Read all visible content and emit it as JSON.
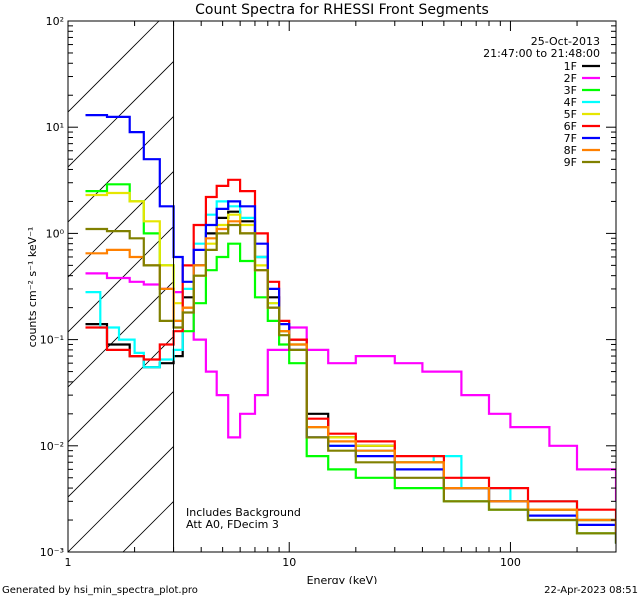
{
  "chart_data": {
    "type": "line",
    "title": "Count Spectra for RHESSI Front Segments",
    "xlabel": "Energy (keV)",
    "ylabel": "counts cm⁻² s⁻¹ keV⁻¹",
    "xscale": "log",
    "yscale": "log",
    "xlim": [
      1,
      300
    ],
    "ylim": [
      0.001,
      100
    ],
    "x_tick_labels": [
      "1",
      "10",
      "100"
    ],
    "y_tick_labels": [
      "10⁻³",
      "10⁻²",
      "10⁻¹",
      "10⁰",
      "10¹",
      "10²"
    ],
    "date": "25-Oct-2013",
    "time_range": "21:47:00 to 21:48:00",
    "hatched_region_keV": [
      1,
      3
    ],
    "annotations": [
      "Includes Background",
      "Att A0, FDecim 3"
    ],
    "series": [
      {
        "name": "1F",
        "color": "#000000",
        "points": [
          [
            1.2,
            0.14
          ],
          [
            1.5,
            0.09
          ],
          [
            1.9,
            0.07
          ],
          [
            2.2,
            0.055
          ],
          [
            2.6,
            0.06
          ],
          [
            3.0,
            0.07
          ],
          [
            3.3,
            0.25
          ],
          [
            3.7,
            0.5
          ],
          [
            4.2,
            1.0
          ],
          [
            4.7,
            1.4
          ],
          [
            5.3,
            1.6
          ],
          [
            6.0,
            1.3
          ],
          [
            7.0,
            0.6
          ],
          [
            8.0,
            0.25
          ],
          [
            9.0,
            0.12
          ],
          [
            10.0,
            0.1
          ],
          [
            12.0,
            0.02
          ],
          [
            15.0,
            0.012
          ],
          [
            20.0,
            0.01
          ],
          [
            30.0,
            0.007
          ],
          [
            50.0,
            0.004
          ],
          [
            80.0,
            0.003
          ],
          [
            120.0,
            0.0025
          ],
          [
            200.0,
            0.002
          ],
          [
            300.0,
            0.0015
          ]
        ]
      },
      {
        "name": "2F",
        "color": "#ff00ff",
        "points": [
          [
            1.2,
            0.42
          ],
          [
            1.5,
            0.38
          ],
          [
            1.9,
            0.35
          ],
          [
            2.2,
            0.33
          ],
          [
            2.6,
            0.3
          ],
          [
            3.0,
            0.28
          ],
          [
            3.3,
            0.2
          ],
          [
            3.7,
            0.1
          ],
          [
            4.2,
            0.05
          ],
          [
            4.7,
            0.03
          ],
          [
            5.3,
            0.012
          ],
          [
            6.0,
            0.02
          ],
          [
            7.0,
            0.03
          ],
          [
            8.0,
            0.08
          ],
          [
            10.0,
            0.13
          ],
          [
            12.0,
            0.08
          ],
          [
            15.0,
            0.06
          ],
          [
            20.0,
            0.07
          ],
          [
            30.0,
            0.06
          ],
          [
            40.0,
            0.05
          ],
          [
            60.0,
            0.03
          ],
          [
            80.0,
            0.02
          ],
          [
            100.0,
            0.015
          ],
          [
            150.0,
            0.01
          ],
          [
            200.0,
            0.006
          ],
          [
            300.0,
            0.003
          ]
        ]
      },
      {
        "name": "3F",
        "color": "#00ff00",
        "points": [
          [
            1.2,
            2.5
          ],
          [
            1.5,
            2.9
          ],
          [
            1.9,
            2.0
          ],
          [
            2.2,
            1.0
          ],
          [
            2.6,
            0.5
          ],
          [
            3.0,
            0.15
          ],
          [
            3.3,
            0.12
          ],
          [
            3.7,
            0.22
          ],
          [
            4.2,
            0.45
          ],
          [
            4.7,
            0.6
          ],
          [
            5.3,
            0.8
          ],
          [
            6.0,
            0.55
          ],
          [
            7.0,
            0.25
          ],
          [
            8.0,
            0.15
          ],
          [
            9.0,
            0.09
          ],
          [
            10.0,
            0.06
          ],
          [
            12.0,
            0.008
          ],
          [
            15.0,
            0.006
          ],
          [
            20.0,
            0.005
          ],
          [
            30.0,
            0.004
          ],
          [
            50.0,
            0.003
          ],
          [
            80.0,
            0.0025
          ],
          [
            120.0,
            0.002
          ],
          [
            200.0,
            0.0015
          ],
          [
            300.0,
            0.0012
          ]
        ]
      },
      {
        "name": "4F",
        "color": "#00ffff",
        "points": [
          [
            1.2,
            0.28
          ],
          [
            1.4,
            0.13
          ],
          [
            1.7,
            0.1
          ],
          [
            2.0,
            0.075
          ],
          [
            2.2,
            0.055
          ],
          [
            2.6,
            0.065
          ],
          [
            3.0,
            0.08
          ],
          [
            3.3,
            0.3
          ],
          [
            3.7,
            0.8
          ],
          [
            4.2,
            1.5
          ],
          [
            4.7,
            2.0
          ],
          [
            5.3,
            1.8
          ],
          [
            6.0,
            1.4
          ],
          [
            7.0,
            0.6
          ],
          [
            8.0,
            0.22
          ],
          [
            9.0,
            0.12
          ],
          [
            10.0,
            0.09
          ],
          [
            12.0,
            0.015
          ],
          [
            15.0,
            0.01
          ],
          [
            20.0,
            0.009
          ],
          [
            30.0,
            0.007
          ],
          [
            45.0,
            0.008
          ],
          [
            60.0,
            0.004
          ],
          [
            100.0,
            0.003
          ],
          [
            200.0,
            0.002
          ],
          [
            300.0,
            0.0015
          ]
        ]
      },
      {
        "name": "5F",
        "color": "#e6e600",
        "points": [
          [
            1.2,
            2.3
          ],
          [
            1.5,
            2.4
          ],
          [
            1.9,
            2.0
          ],
          [
            2.2,
            1.3
          ],
          [
            2.6,
            0.5
          ],
          [
            3.0,
            0.22
          ],
          [
            3.3,
            0.2
          ],
          [
            3.7,
            0.4
          ],
          [
            4.2,
            0.8
          ],
          [
            4.7,
            1.2
          ],
          [
            5.3,
            1.5
          ],
          [
            6.0,
            1.2
          ],
          [
            7.0,
            0.5
          ],
          [
            8.0,
            0.22
          ],
          [
            9.0,
            0.12
          ],
          [
            10.0,
            0.09
          ],
          [
            12.0,
            0.015
          ],
          [
            15.0,
            0.012
          ],
          [
            20.0,
            0.01
          ],
          [
            30.0,
            0.007
          ],
          [
            50.0,
            0.004
          ],
          [
            80.0,
            0.003
          ],
          [
            120.0,
            0.0025
          ],
          [
            200.0,
            0.002
          ],
          [
            300.0,
            0.0015
          ]
        ]
      },
      {
        "name": "6F",
        "color": "#ff0000",
        "points": [
          [
            1.2,
            0.13
          ],
          [
            1.5,
            0.08
          ],
          [
            1.9,
            0.07
          ],
          [
            2.2,
            0.065
          ],
          [
            2.6,
            0.09
          ],
          [
            3.0,
            0.12
          ],
          [
            3.3,
            0.5
          ],
          [
            3.7,
            1.2
          ],
          [
            4.2,
            2.2
          ],
          [
            4.7,
            2.8
          ],
          [
            5.3,
            3.2
          ],
          [
            6.0,
            2.5
          ],
          [
            7.0,
            1.0
          ],
          [
            8.0,
            0.35
          ],
          [
            9.0,
            0.15
          ],
          [
            10.0,
            0.1
          ],
          [
            12.0,
            0.018
          ],
          [
            15.0,
            0.013
          ],
          [
            20.0,
            0.011
          ],
          [
            30.0,
            0.008
          ],
          [
            50.0,
            0.005
          ],
          [
            80.0,
            0.004
          ],
          [
            120.0,
            0.003
          ],
          [
            200.0,
            0.0025
          ],
          [
            300.0,
            0.002
          ]
        ]
      },
      {
        "name": "7F",
        "color": "#0000ff",
        "points": [
          [
            1.2,
            13.0
          ],
          [
            1.5,
            12.5
          ],
          [
            1.9,
            9.0
          ],
          [
            2.2,
            5.0
          ],
          [
            2.6,
            1.8
          ],
          [
            3.0,
            0.6
          ],
          [
            3.3,
            0.35
          ],
          [
            3.7,
            0.7
          ],
          [
            4.2,
            1.2
          ],
          [
            4.7,
            1.7
          ],
          [
            5.3,
            2.0
          ],
          [
            6.0,
            1.8
          ],
          [
            7.0,
            0.8
          ],
          [
            8.0,
            0.3
          ],
          [
            9.0,
            0.14
          ],
          [
            10.0,
            0.08
          ],
          [
            12.0,
            0.012
          ],
          [
            15.0,
            0.01
          ],
          [
            20.0,
            0.008
          ],
          [
            30.0,
            0.006
          ],
          [
            50.0,
            0.004
          ],
          [
            80.0,
            0.003
          ],
          [
            120.0,
            0.0022
          ],
          [
            200.0,
            0.0018
          ],
          [
            300.0,
            0.0012
          ]
        ]
      },
      {
        "name": "8F",
        "color": "#ff8000",
        "points": [
          [
            1.2,
            0.65
          ],
          [
            1.5,
            0.7
          ],
          [
            1.9,
            0.6
          ],
          [
            2.2,
            0.5
          ],
          [
            2.6,
            0.3
          ],
          [
            3.0,
            0.15
          ],
          [
            3.3,
            0.2
          ],
          [
            3.7,
            0.5
          ],
          [
            4.2,
            0.9
          ],
          [
            4.7,
            1.1
          ],
          [
            5.3,
            1.3
          ],
          [
            6.0,
            1.0
          ],
          [
            7.0,
            0.45
          ],
          [
            8.0,
            0.2
          ],
          [
            9.0,
            0.12
          ],
          [
            10.0,
            0.09
          ],
          [
            12.0,
            0.015
          ],
          [
            15.0,
            0.011
          ],
          [
            20.0,
            0.009
          ],
          [
            30.0,
            0.007
          ],
          [
            50.0,
            0.004
          ],
          [
            80.0,
            0.003
          ],
          [
            120.0,
            0.0025
          ],
          [
            200.0,
            0.002
          ],
          [
            300.0,
            0.0015
          ]
        ]
      },
      {
        "name": "9F",
        "color": "#808000",
        "points": [
          [
            1.2,
            1.1
          ],
          [
            1.5,
            1.05
          ],
          [
            1.9,
            0.9
          ],
          [
            2.2,
            0.5
          ],
          [
            2.6,
            0.15
          ],
          [
            3.0,
            0.13
          ],
          [
            3.3,
            0.18
          ],
          [
            3.7,
            0.4
          ],
          [
            4.2,
            0.7
          ],
          [
            4.7,
            1.0
          ],
          [
            5.3,
            1.2
          ],
          [
            6.0,
            1.0
          ],
          [
            7.0,
            0.45
          ],
          [
            8.0,
            0.2
          ],
          [
            9.0,
            0.11
          ],
          [
            10.0,
            0.08
          ],
          [
            12.0,
            0.012
          ],
          [
            15.0,
            0.009
          ],
          [
            20.0,
            0.007
          ],
          [
            30.0,
            0.005
          ],
          [
            50.0,
            0.003
          ],
          [
            80.0,
            0.0025
          ],
          [
            120.0,
            0.002
          ],
          [
            200.0,
            0.0015
          ],
          [
            300.0,
            0.0012
          ]
        ]
      }
    ]
  },
  "footer": {
    "left": "Generated by hsi_min_spectra_plot.pro",
    "right": "22-Apr-2023 08:51"
  }
}
